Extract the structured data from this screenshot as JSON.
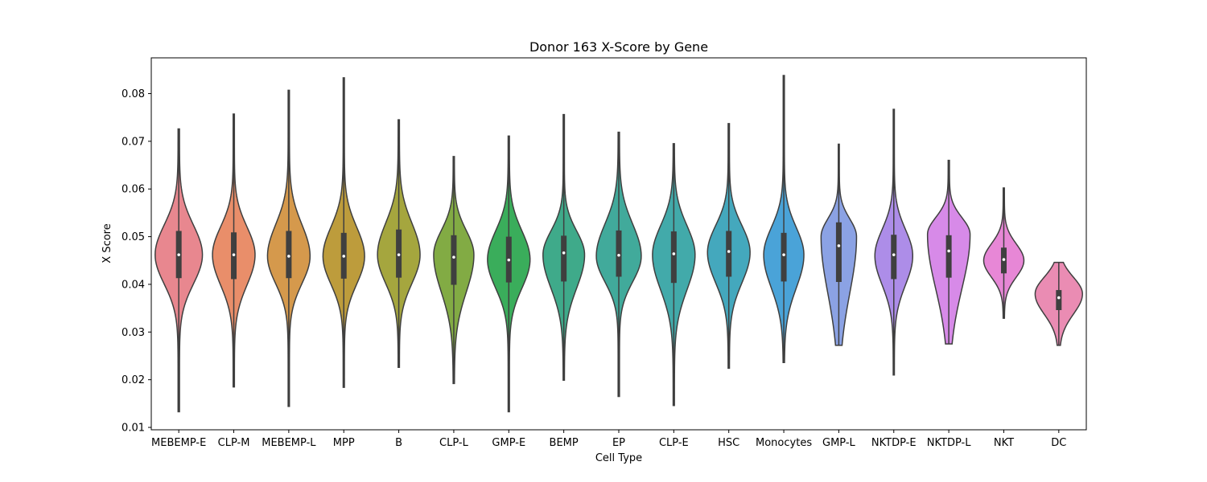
{
  "chart_data": {
    "type": "violin",
    "title": "Donor 163 X-Score by Gene",
    "xlabel": "Cell Type",
    "ylabel": "X Score",
    "ylim": [
      0.0095,
      0.0875
    ],
    "yticks": [
      "0.01",
      "0.02",
      "0.03",
      "0.04",
      "0.05",
      "0.06",
      "0.07",
      "0.08"
    ],
    "grid": false,
    "legend": "none",
    "categories": [
      "MEBEMP-E",
      "CLP-M",
      "MEBEMP-L",
      "MPP",
      "B",
      "CLP-L",
      "GMP-E",
      "BEMP",
      "EP",
      "CLP-E",
      "HSC",
      "Monocytes",
      "GMP-L",
      "NKTDP-E",
      "NKTDP-L",
      "NKT",
      "DC"
    ],
    "series": [
      {
        "name": "MEBEMP-E",
        "color": "#e8878f",
        "min": 0.0133,
        "q1": 0.0413,
        "median": 0.0462,
        "q3": 0.0512,
        "max": 0.0726,
        "peak": 0.0462,
        "width": 1.0
      },
      {
        "name": "CLP-M",
        "color": "#e98e6a",
        "min": 0.0185,
        "q1": 0.0411,
        "median": 0.0462,
        "q3": 0.0509,
        "max": 0.0757,
        "peak": 0.0462,
        "width": 0.9
      },
      {
        "name": "MEBEMP-L",
        "color": "#d5994c",
        "min": 0.0144,
        "q1": 0.0413,
        "median": 0.0459,
        "q3": 0.0512,
        "max": 0.0807,
        "peak": 0.0459,
        "width": 0.9
      },
      {
        "name": "MPP",
        "color": "#bd9c3c",
        "min": 0.0184,
        "q1": 0.0412,
        "median": 0.0459,
        "q3": 0.0508,
        "max": 0.0833,
        "peak": 0.0459,
        "width": 0.88
      },
      {
        "name": "B",
        "color": "#a5a63e",
        "min": 0.0226,
        "q1": 0.0414,
        "median": 0.0462,
        "q3": 0.0515,
        "max": 0.0745,
        "peak": 0.0462,
        "width": 0.9
      },
      {
        "name": "CLP-L",
        "color": "#82ab44",
        "min": 0.0192,
        "q1": 0.0399,
        "median": 0.0457,
        "q3": 0.0503,
        "max": 0.0668,
        "peak": 0.0462,
        "width": 0.85
      },
      {
        "name": "GMP-E",
        "color": "#3aad5b",
        "min": 0.0133,
        "q1": 0.0404,
        "median": 0.0451,
        "q3": 0.05,
        "max": 0.0711,
        "peak": 0.0452,
        "width": 0.9
      },
      {
        "name": "BEMP",
        "color": "#3faa8a",
        "min": 0.0199,
        "q1": 0.0406,
        "median": 0.0466,
        "q3": 0.0502,
        "max": 0.0756,
        "peak": 0.0462,
        "width": 0.88
      },
      {
        "name": "EP",
        "color": "#41aa9b",
        "min": 0.0165,
        "q1": 0.0416,
        "median": 0.0461,
        "q3": 0.0513,
        "max": 0.0719,
        "peak": 0.0459,
        "width": 0.95
      },
      {
        "name": "CLP-E",
        "color": "#42aaaa",
        "min": 0.0146,
        "q1": 0.0403,
        "median": 0.0464,
        "q3": 0.0511,
        "max": 0.0695,
        "peak": 0.0462,
        "width": 0.9
      },
      {
        "name": "HSC",
        "color": "#44a8bd",
        "min": 0.0224,
        "q1": 0.0416,
        "median": 0.0469,
        "q3": 0.0512,
        "max": 0.0737,
        "peak": 0.0467,
        "width": 0.9
      },
      {
        "name": "Monocytes",
        "color": "#4aa3d8",
        "min": 0.0236,
        "q1": 0.0406,
        "median": 0.0462,
        "q3": 0.0508,
        "max": 0.0838,
        "peak": 0.0462,
        "width": 0.85
      },
      {
        "name": "GMP-L",
        "color": "#8ba2e4",
        "min": 0.0272,
        "q1": 0.0405,
        "median": 0.0481,
        "q3": 0.053,
        "max": 0.0694,
        "peak": 0.05,
        "width": 0.75
      },
      {
        "name": "NKTDP-E",
        "color": "#ad8de8",
        "min": 0.021,
        "q1": 0.0411,
        "median": 0.0462,
        "q3": 0.0504,
        "max": 0.0767,
        "peak": 0.046,
        "width": 0.8
      },
      {
        "name": "NKTDP-L",
        "color": "#d78ae8",
        "min": 0.0275,
        "q1": 0.0414,
        "median": 0.047,
        "q3": 0.0503,
        "max": 0.066,
        "peak": 0.0505,
        "width": 0.9
      },
      {
        "name": "NKT",
        "color": "#e787d6",
        "min": 0.0329,
        "q1": 0.0423,
        "median": 0.0452,
        "q3": 0.0477,
        "max": 0.0602,
        "peak": 0.045,
        "width": 0.85
      },
      {
        "name": "DC",
        "color": "#ea8cb3",
        "min": 0.0272,
        "q1": 0.0346,
        "median": 0.0372,
        "q3": 0.0388,
        "max": 0.0446,
        "peak": 0.038,
        "width": 1.0
      }
    ]
  }
}
